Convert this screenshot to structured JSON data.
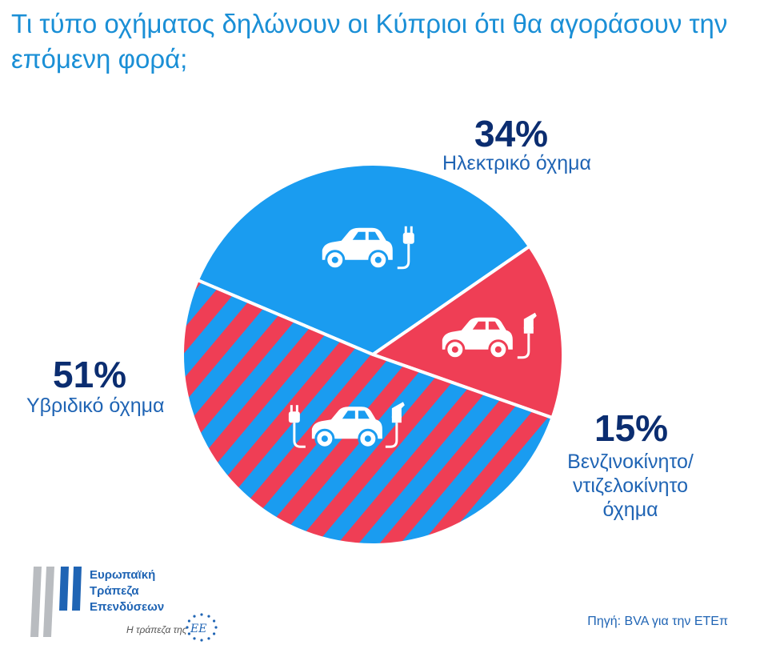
{
  "chart_data": {
    "type": "pie",
    "title": "Τι τύπο οχήματος δηλώνουν οι Κύπριοι ότι θα αγοράσουν την επόμενη φορά;",
    "slices": [
      {
        "value": 34,
        "pct_text": "34%",
        "label": "Ηλεκτρικό όχημα",
        "color": "#1a9cf0",
        "pattern": "solid"
      },
      {
        "value": 15,
        "pct_text": "15%",
        "label_lines": [
          "Βενζινοκίνητο/",
          "ντιζελοκίνητο",
          "όχημα"
        ],
        "color": "#ef3e55",
        "pattern": "solid"
      },
      {
        "value": 51,
        "pct_text": "51%",
        "label": "Υβριδικό όχημα",
        "color": "#1a9cf0",
        "stripe_color": "#ef3e55",
        "pattern": "diagonal-stripes"
      }
    ],
    "icons": [
      "electric-car-icon",
      "petrol-car-icon",
      "hybrid-car-icon"
    ]
  },
  "source": "Πηγή: BVA για την ΕΤΕπ",
  "logo": {
    "lines": [
      "Ευρωπαϊκή",
      "Τράπεζα",
      "Επενδύσεων"
    ],
    "tagline": "Η τράπεζα της",
    "tag_mark": "ΕΕ"
  },
  "colors": {
    "title": "#1a8fd6",
    "percent": "#0b2d70",
    "label": "#1f64b4"
  }
}
